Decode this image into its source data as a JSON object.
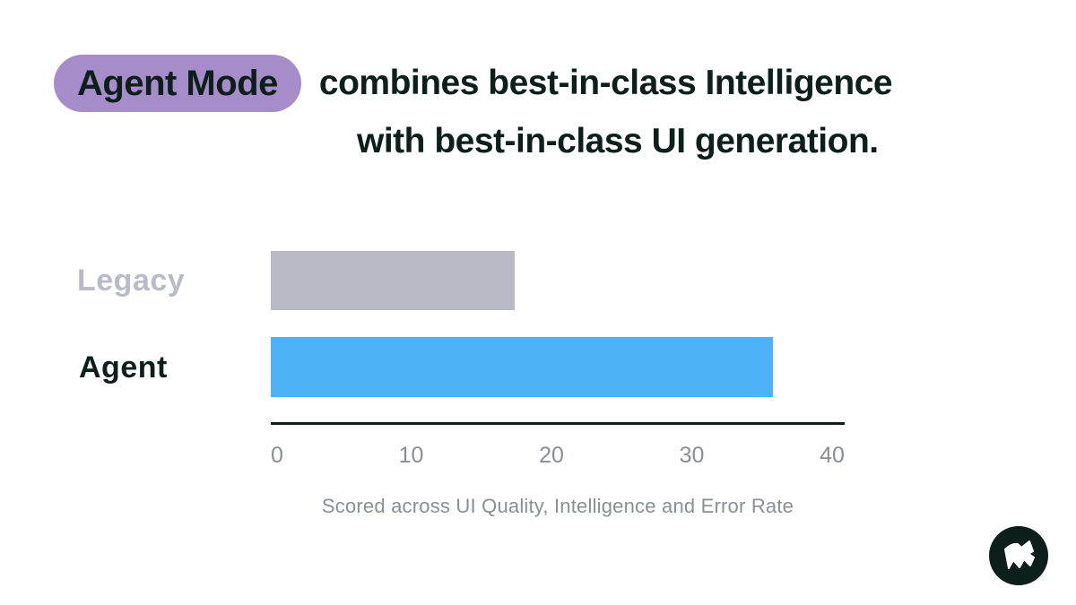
{
  "header": {
    "badge_label": "Agent Mode",
    "title_line1": "combines best-in-class Intelligence",
    "title_line2": "with best-in-class UI generation."
  },
  "chart_data": {
    "type": "bar",
    "orientation": "horizontal",
    "categories": [
      "Legacy",
      "Agent"
    ],
    "values": [
      17,
      35
    ],
    "xlim": [
      0,
      40
    ],
    "x_ticks": [
      0,
      10,
      20,
      30,
      40
    ],
    "bar_colors": [
      "#b8bac6",
      "#4db2f6"
    ],
    "label_colors": [
      "#b9bcc8",
      "#0d1f1a"
    ],
    "caption": "Scored across UI Quality, Intelligence and Error Rate",
    "grid": false,
    "legend": "none"
  },
  "footer": {
    "logo_icon": "flag-logo"
  },
  "colors": {
    "background": "#ffffff",
    "badge_bg": "#a68dc9",
    "text_dark": "#0d1f1a",
    "muted": "#8b8e99",
    "legacy_bar": "#b8bac6",
    "agent_bar": "#4db2f6"
  }
}
